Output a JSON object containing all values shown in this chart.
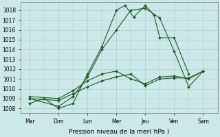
{
  "bg_color": "#cce8e8",
  "grid_color": "#aacccc",
  "line_color": "#1a5c1a",
  "xlabel": "Pression niveau de la mer( hPa )",
  "xlabels": [
    "Mar",
    "Dim",
    "Lun",
    "Mer",
    "Jeu",
    "Ven",
    "Sam"
  ],
  "x_positions": [
    0,
    1,
    2,
    3,
    4,
    5,
    6
  ],
  "ylim": [
    1007.5,
    1018.8
  ],
  "yticks": [
    1008,
    1009,
    1010,
    1011,
    1012,
    1013,
    1014,
    1015,
    1016,
    1017,
    1018
  ],
  "lines": [
    {
      "x": [
        0,
        0.5,
        1,
        1.5,
        2,
        2.5,
        3,
        3.3,
        3.6,
        4,
        4.3,
        4.5,
        5,
        5.5
      ],
      "y": [
        1008.5,
        1009,
        1008,
        1008.5,
        1011.5,
        1014.3,
        1018,
        1018.5,
        1017.3,
        1018.5,
        1017.5,
        1015.2,
        1015.2,
        1011.5
      ]
    },
    {
      "x": [
        0,
        1,
        1.5,
        2,
        2.5,
        3,
        3.5,
        4,
        4.5,
        5,
        5.5,
        6
      ],
      "y": [
        1009,
        1008.2,
        1009.2,
        1011.2,
        1014.0,
        1016.0,
        1018.0,
        1018.2,
        1017.2,
        1013.8,
        1010.2,
        1011.8
      ]
    },
    {
      "x": [
        0,
        1,
        1.5,
        2,
        2.5,
        3,
        3.5,
        4,
        4.5,
        5,
        5.5,
        6
      ],
      "y": [
        1009.2,
        1009.0,
        1009.8,
        1010.8,
        1011.5,
        1011.8,
        1011.0,
        1010.5,
        1011.2,
        1011.3,
        1011.0,
        1011.8
      ]
    },
    {
      "x": [
        0,
        1,
        1.5,
        2,
        2.5,
        3,
        3.5,
        4,
        4.5,
        5,
        5.5,
        6
      ],
      "y": [
        1009.0,
        1008.8,
        1009.5,
        1010.2,
        1010.8,
        1011.2,
        1011.5,
        1010.3,
        1011.0,
        1011.1,
        1011.1,
        1011.8
      ]
    }
  ]
}
